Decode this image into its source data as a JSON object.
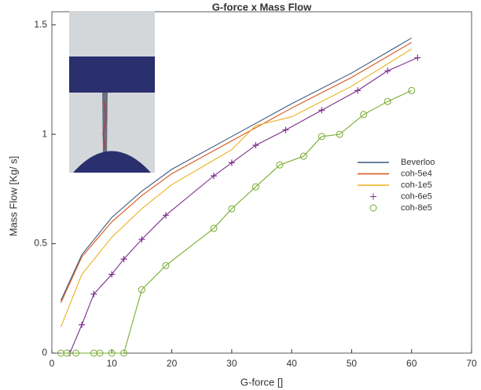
{
  "chart_data": {
    "type": "line",
    "title": "G-force x Mass Flow",
    "xlabel": "G-force []",
    "ylabel": "Mass Flow [Kg/ s]",
    "xlim": [
      0,
      70
    ],
    "ylim": [
      0,
      1.56
    ],
    "xticks": [
      0,
      10,
      20,
      30,
      40,
      50,
      60,
      70
    ],
    "yticks": [
      0,
      0.5,
      1,
      1.5
    ],
    "grid": false,
    "legend": "right",
    "series": [
      {
        "name": "Beverloo",
        "color": "#3c5a80",
        "marker": "none",
        "x": [
          1.5,
          5,
          10,
          15,
          20,
          30,
          40,
          50,
          60
        ],
        "values": [
          0.24,
          0.45,
          0.62,
          0.74,
          0.84,
          0.99,
          1.14,
          1.28,
          1.44
        ]
      },
      {
        "name": "coh-5e4",
        "color": "#d95319",
        "marker": "none",
        "x": [
          1.5,
          5,
          10,
          15,
          20,
          30,
          40,
          50,
          60
        ],
        "values": [
          0.23,
          0.44,
          0.6,
          0.72,
          0.82,
          0.97,
          1.12,
          1.26,
          1.42
        ]
      },
      {
        "name": "coh-1e5",
        "color": "#edb120",
        "marker": "none",
        "x": [
          1.5,
          5,
          10,
          15,
          20,
          30,
          34,
          40,
          50,
          60
        ],
        "values": [
          0.12,
          0.36,
          0.53,
          0.66,
          0.77,
          0.93,
          1.04,
          1.08,
          1.22,
          1.39
        ]
      },
      {
        "name": "coh-6e5",
        "color": "#7e2f8e",
        "marker": "plus",
        "x": [
          3,
          5,
          7,
          10,
          12,
          15,
          19,
          27,
          30,
          34,
          39,
          45,
          51,
          56,
          61
        ],
        "values": [
          0,
          0.13,
          0.27,
          0.36,
          0.43,
          0.52,
          0.63,
          0.81,
          0.87,
          0.95,
          1.02,
          1.11,
          1.2,
          1.29,
          1.35
        ]
      },
      {
        "name": "coh-8e5",
        "color": "#77ac30",
        "marker": "circle",
        "x": [
          1.5,
          2.5,
          4,
          7,
          8,
          10,
          12,
          15,
          19,
          27,
          30,
          34,
          38,
          42,
          45,
          48,
          52,
          56,
          60
        ],
        "values": [
          0,
          0,
          0,
          0,
          0,
          0,
          0,
          0.29,
          0.4,
          0.57,
          0.66,
          0.76,
          0.86,
          0.9,
          0.99,
          1.0,
          1.09,
          1.15,
          1.2
        ]
      }
    ]
  }
}
